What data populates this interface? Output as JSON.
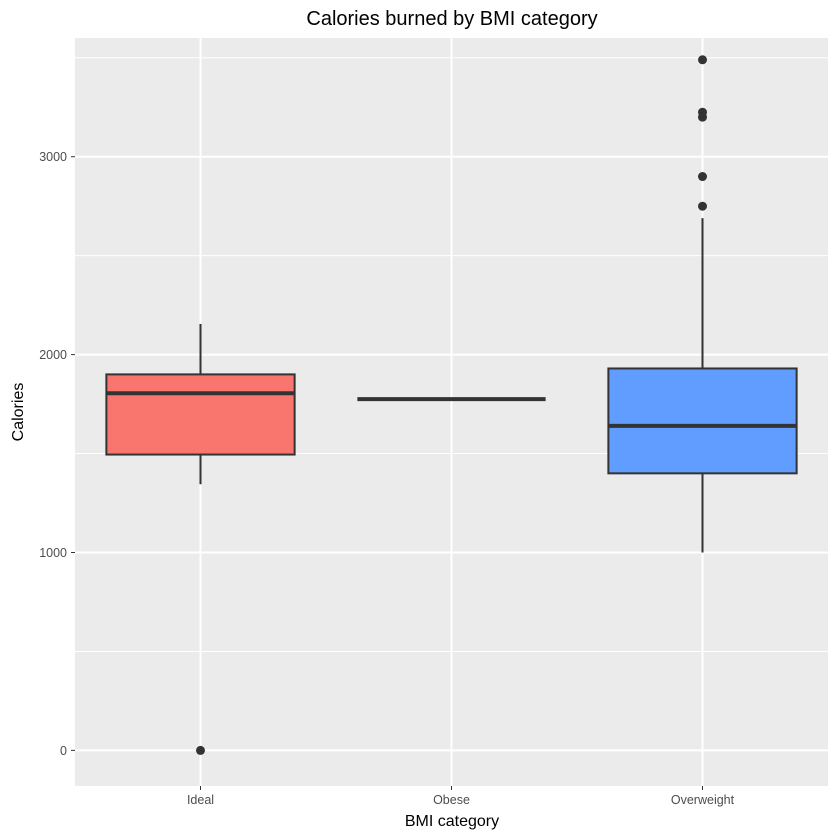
{
  "chart_data": {
    "type": "box",
    "title": "Calories burned by BMI category",
    "xlabel": "BMI category",
    "ylabel": "Calories",
    "ylim": [
      -180,
      3600
    ],
    "y_ticks": [
      0,
      1000,
      2000,
      3000
    ],
    "grid": true,
    "legend": "none",
    "categories": [
      "Ideal",
      "Obese",
      "Overweight"
    ],
    "boxes": [
      {
        "category": "Ideal",
        "whisker_low": 1345,
        "q1": 1495,
        "median": 1805,
        "q3": 1900,
        "whisker_high": 2155,
        "outliers": [
          0
        ],
        "fill": "#F8766D"
      },
      {
        "category": "Obese",
        "whisker_low": 1775,
        "q1": 1775,
        "median": 1775,
        "q3": 1775,
        "whisker_high": 1775,
        "outliers": [],
        "fill": "#00BA38"
      },
      {
        "category": "Overweight",
        "whisker_low": 1000,
        "q1": 1400,
        "median": 1640,
        "q3": 1930,
        "whisker_high": 2690,
        "outliers": [
          2750,
          2900,
          3200,
          3225,
          3490
        ],
        "fill": "#619CFF"
      }
    ],
    "colors": {
      "panel_background": "#EBEBEB",
      "grid": "#FFFFFF",
      "box_outline": "#333333"
    }
  }
}
